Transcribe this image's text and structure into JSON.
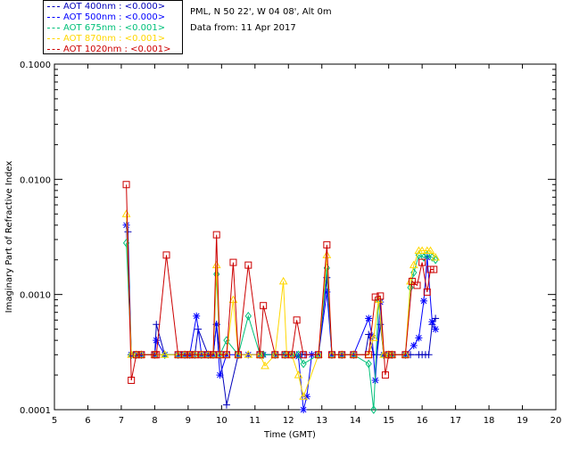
{
  "header": {
    "site": "PML, N 50 22', W 04 08', Alt 0m",
    "date_line": "Data from: 11 Apr 2017"
  },
  "legend": [
    {
      "label": "AOT  400nm : <0.000>",
      "color": "#0000bb",
      "marker": "plus"
    },
    {
      "label": "AOT  500nm : <0.000>",
      "color": "#0000ff",
      "marker": "asterisk"
    },
    {
      "label": "AOT  675nm : <0.001>",
      "color": "#00c07a",
      "marker": "diamond"
    },
    {
      "label": "AOT  870nm : <0.001>",
      "color": "#ffd700",
      "marker": "triangle"
    },
    {
      "label": "AOT 1020nm : <0.001>",
      "color": "#cc0000",
      "marker": "square"
    }
  ],
  "chart_data": {
    "type": "line",
    "title": "",
    "xlabel": "Time (GMT)",
    "ylabel": "Imaginary Part of Refractive Index",
    "xlim": [
      5,
      20
    ],
    "ylim": [
      0.0001,
      0.1
    ],
    "yscale": "log",
    "x_ticks": [
      "5",
      "6",
      "7",
      "8",
      "9",
      "10",
      "11",
      "12",
      "13",
      "14",
      "15",
      "16",
      "17",
      "18",
      "19",
      "20"
    ],
    "y_ticks": [
      "0.0001",
      "0.0010",
      "0.0100",
      "0.1000"
    ],
    "series": [
      {
        "name": "AOT 400nm",
        "color": "#0000bb",
        "marker": "plus",
        "x": [
          7.2,
          7.3,
          7.4,
          7.6,
          8.0,
          8.05,
          8.3,
          8.7,
          8.9,
          9.05,
          9.2,
          9.3,
          9.6,
          9.75,
          9.85,
          9.95,
          10.15,
          10.5,
          10.8,
          11.15,
          11.25,
          11.6,
          11.9,
          12.1,
          12.25,
          12.4,
          12.5,
          12.7,
          12.9,
          13.15,
          13.3,
          13.6,
          13.95,
          14.3,
          14.4,
          14.55,
          14.65,
          14.75,
          14.85,
          15.0,
          15.1,
          15.5,
          15.65,
          15.9,
          16.0,
          16.1,
          16.2,
          16.3,
          16.4
        ],
        "y": [
          0.0035,
          0.0003,
          0.0003,
          0.0003,
          0.0003,
          0.00055,
          0.0003,
          0.0003,
          0.0003,
          0.0003,
          0.0003,
          0.0005,
          0.0003,
          0.0003,
          0.00055,
          0.0003,
          0.00011,
          0.0003,
          0.0003,
          0.0003,
          0.0003,
          0.0003,
          0.0003,
          0.0003,
          0.0003,
          0.0003,
          0.0003,
          0.0003,
          0.0003,
          0.0014,
          0.0003,
          0.0003,
          0.0003,
          0.0003,
          0.00045,
          0.0003,
          0.0003,
          0.00055,
          0.0003,
          0.0003,
          0.0003,
          0.0003,
          0.0003,
          0.0003,
          0.0003,
          0.0003,
          0.0003,
          0.00055,
          0.00062
        ]
      },
      {
        "name": "AOT 500nm",
        "color": "#0000ff",
        "marker": "asterisk",
        "x": [
          7.15,
          7.3,
          7.45,
          7.6,
          8.0,
          8.05,
          8.3,
          8.7,
          8.9,
          9.05,
          9.25,
          9.4,
          9.6,
          9.75,
          9.85,
          9.95,
          10.15,
          10.5,
          10.8,
          11.15,
          11.25,
          11.6,
          11.9,
          12.1,
          12.3,
          12.45,
          12.55,
          12.7,
          12.9,
          13.15,
          13.3,
          13.6,
          13.95,
          14.4,
          14.5,
          14.6,
          14.75,
          14.85,
          15.0,
          15.1,
          15.5,
          15.75,
          15.9,
          16.05,
          16.15,
          16.3,
          16.4
        ],
        "y": [
          0.004,
          0.0003,
          0.0003,
          0.0003,
          0.0003,
          0.0004,
          0.0003,
          0.0003,
          0.0003,
          0.0003,
          0.00065,
          0.0003,
          0.0003,
          0.0003,
          0.00055,
          0.0002,
          0.0003,
          0.0003,
          0.0003,
          0.0003,
          0.0003,
          0.0003,
          0.0003,
          0.0003,
          0.00029,
          0.0001,
          0.00013,
          0.0003,
          0.0003,
          0.00105,
          0.0003,
          0.0003,
          0.0003,
          0.00062,
          0.00044,
          0.00018,
          0.00086,
          0.0003,
          0.0003,
          0.0003,
          0.0003,
          0.00036,
          0.00042,
          0.00088,
          0.0021,
          0.00058,
          0.0005
        ]
      },
      {
        "name": "AOT 675nm",
        "color": "#00c07a",
        "marker": "diamond",
        "x": [
          7.15,
          7.3,
          7.45,
          7.6,
          8.0,
          8.3,
          8.7,
          8.9,
          9.05,
          9.2,
          9.4,
          9.6,
          9.75,
          9.85,
          9.95,
          10.15,
          10.5,
          10.8,
          11.15,
          11.25,
          11.6,
          11.9,
          12.1,
          12.3,
          12.45,
          12.9,
          13.15,
          13.3,
          13.6,
          13.95,
          14.4,
          14.55,
          14.7,
          14.85,
          15.0,
          15.1,
          15.5,
          15.65,
          15.75,
          15.9,
          16.05,
          16.15,
          16.3,
          16.4
        ],
        "y": [
          0.0028,
          0.0003,
          0.0003,
          0.0003,
          0.0003,
          0.0003,
          0.0003,
          0.0003,
          0.0003,
          0.0003,
          0.0003,
          0.0003,
          0.0003,
          0.0015,
          0.0003,
          0.0004,
          0.0003,
          0.00065,
          0.0003,
          0.0003,
          0.0003,
          0.0003,
          0.0003,
          0.0003,
          0.00025,
          0.0003,
          0.0017,
          0.0003,
          0.0003,
          0.0003,
          0.00025,
          0.0001,
          0.0009,
          0.0003,
          0.0003,
          0.0003,
          0.0003,
          0.00115,
          0.00155,
          0.0022,
          0.0021,
          0.0022,
          0.0021,
          0.002
        ]
      },
      {
        "name": "AOT 870nm",
        "color": "#ffd700",
        "marker": "triangle",
        "x": [
          7.15,
          7.3,
          7.45,
          7.6,
          8.0,
          8.3,
          8.7,
          8.9,
          9.05,
          9.2,
          9.4,
          9.6,
          9.75,
          9.85,
          9.95,
          10.15,
          10.35,
          10.5,
          10.8,
          11.15,
          11.3,
          11.6,
          11.85,
          11.95,
          12.1,
          12.3,
          12.45,
          12.9,
          13.15,
          13.3,
          13.6,
          13.95,
          14.4,
          14.55,
          14.7,
          14.85,
          15.0,
          15.1,
          15.5,
          15.65,
          15.75,
          15.9,
          16.0,
          16.15,
          16.25,
          16.4
        ],
        "y": [
          0.005,
          0.0003,
          0.0003,
          0.0003,
          0.0003,
          0.0003,
          0.0003,
          0.0003,
          0.0003,
          0.0003,
          0.0003,
          0.0003,
          0.0003,
          0.0018,
          0.0003,
          0.0003,
          0.0009,
          0.0003,
          0.0003,
          0.0003,
          0.00024,
          0.0003,
          0.0013,
          0.0003,
          0.0003,
          0.0002,
          0.00013,
          0.0003,
          0.0022,
          0.0003,
          0.0003,
          0.0003,
          0.0003,
          0.00042,
          0.0009,
          0.0003,
          0.0003,
          0.0003,
          0.0003,
          0.0013,
          0.0018,
          0.0024,
          0.0024,
          0.0024,
          0.0024,
          0.0021
        ]
      },
      {
        "name": "AOT 1020nm",
        "color": "#cc0000",
        "marker": "square",
        "x": [
          7.15,
          7.3,
          7.45,
          7.6,
          8.0,
          8.05,
          8.35,
          8.7,
          8.9,
          9.05,
          9.2,
          9.4,
          9.6,
          9.75,
          9.85,
          9.95,
          10.15,
          10.35,
          10.5,
          10.8,
          11.15,
          11.25,
          11.6,
          11.9,
          12.1,
          12.25,
          12.45,
          12.9,
          13.15,
          13.3,
          13.6,
          13.95,
          14.4,
          14.6,
          14.75,
          14.9,
          15.0,
          15.1,
          15.5,
          15.7,
          15.85,
          16.0,
          16.15,
          16.25,
          16.35
        ],
        "y": [
          0.009,
          0.00018,
          0.0003,
          0.0003,
          0.0003,
          0.0003,
          0.0022,
          0.0003,
          0.0003,
          0.0003,
          0.0003,
          0.0003,
          0.0003,
          0.0003,
          0.0033,
          0.0003,
          0.0003,
          0.0019,
          0.0003,
          0.0018,
          0.0003,
          0.0008,
          0.0003,
          0.0003,
          0.0003,
          0.0006,
          0.0003,
          0.0003,
          0.0027,
          0.0003,
          0.0003,
          0.0003,
          0.0003,
          0.00095,
          0.00097,
          0.0002,
          0.0003,
          0.0003,
          0.0003,
          0.0013,
          0.0012,
          0.0019,
          0.00105,
          0.00165,
          0.00165
        ]
      }
    ]
  }
}
